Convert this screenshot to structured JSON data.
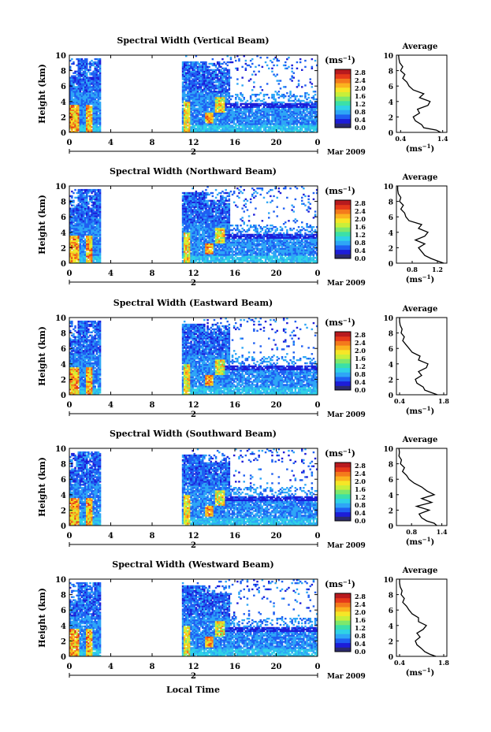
{
  "date_label": "Mar 2009",
  "xlabel": "Local Time",
  "units_label": "(ms",
  "units_exp": "−1",
  "avg_title": "Average",
  "colorbar": {
    "ticks": [
      "2.8",
      "2.4",
      "2.0",
      "1.6",
      "1.2",
      "0.8",
      "0.4",
      "0.0"
    ],
    "colors": [
      "#2b2a6e",
      "#1d1dd8",
      "#1f5ff2",
      "#2ea6f6",
      "#2fd2e6",
      "#3be0a8",
      "#7de86c",
      "#c8ef3a",
      "#f6e627",
      "#fbb31f",
      "#f47a1c",
      "#e6391a",
      "#b81a1e"
    ]
  },
  "chart_data": [
    {
      "type": "heatmap",
      "title": "Spectral Width (Vertical Beam)",
      "ylabel": "Height (km)",
      "x_ticks": [
        "0",
        "4",
        "8",
        "12",
        "16",
        "20",
        "0"
      ],
      "day_label": "2",
      "y_ticks": [
        "10",
        "8",
        "6",
        "4",
        "2",
        "0"
      ],
      "xlim": [
        0,
        24
      ],
      "ylim": [
        0,
        10
      ],
      "data_gap_hours": [
        3.0,
        10.8
      ],
      "units": "ms^-1",
      "average_profile": {
        "xlabel": "(ms^-1)",
        "x_ticks": [
          "0.4",
          "1.4"
        ],
        "xlim": [
          0.3,
          1.5
        ],
        "height_km": [
          0,
          0.3,
          0.6,
          1,
          1.5,
          2,
          2.5,
          3,
          3.5,
          4,
          4.5,
          5,
          5.5,
          6,
          6.5,
          7,
          7.5,
          8,
          8.5,
          9,
          9.5,
          10
        ],
        "width": [
          1.35,
          1.25,
          0.95,
          0.9,
          0.75,
          0.7,
          0.85,
          0.8,
          1.05,
          1.1,
          0.85,
          0.95,
          0.7,
          0.6,
          0.55,
          0.45,
          0.5,
          0.4,
          0.45,
          0.38,
          0.36,
          0.35
        ]
      }
    },
    {
      "type": "heatmap",
      "title": "Spectral Width (Northward Beam)",
      "ylabel": "Height (km)",
      "x_ticks": [
        "0",
        "4",
        "8",
        "12",
        "16",
        "20",
        "0"
      ],
      "day_label": "2",
      "y_ticks": [
        "10",
        "8",
        "6",
        "4",
        "2",
        "0"
      ],
      "xlim": [
        0,
        24
      ],
      "ylim": [
        0,
        10
      ],
      "data_gap_hours": [
        3.0,
        10.8
      ],
      "units": "ms^-1",
      "average_profile": {
        "xlabel": "(ms^-1)",
        "x_ticks": [
          "0.8",
          "1.2"
        ],
        "xlim": [
          0.55,
          1.35
        ],
        "height_km": [
          0,
          0.3,
          0.6,
          1,
          1.5,
          2,
          2.5,
          3,
          3.5,
          4,
          4.5,
          5,
          5.5,
          6,
          6.5,
          7,
          7.5,
          8,
          8.5,
          9,
          9.5,
          10
        ],
        "width": [
          1.3,
          1.2,
          1.1,
          1.0,
          0.95,
          0.9,
          1.0,
          0.85,
          1.0,
          1.05,
          0.9,
          0.95,
          0.75,
          0.7,
          0.68,
          0.62,
          0.66,
          0.6,
          0.62,
          0.58,
          0.57,
          0.57
        ]
      }
    },
    {
      "type": "heatmap",
      "title": "Spectral Width (Eastward Beam)",
      "ylabel": "Height (km)",
      "x_ticks": [
        "0",
        "4",
        "8",
        "12",
        "16",
        "20",
        "0"
      ],
      "day_label": "2",
      "y_ticks": [
        "10",
        "8",
        "6",
        "4",
        "2",
        "0"
      ],
      "xlim": [
        0,
        24
      ],
      "ylim": [
        0,
        10
      ],
      "data_gap_hours": [
        3.0,
        10.8
      ],
      "units": "ms^-1",
      "average_profile": {
        "xlabel": "(ms^-1)",
        "x_ticks": [
          "0.4",
          "1.8"
        ],
        "xlim": [
          0.3,
          1.9
        ],
        "height_km": [
          0,
          0.3,
          0.6,
          1,
          1.5,
          2,
          2.5,
          3,
          3.5,
          4,
          4.5,
          5,
          5.5,
          6,
          6.5,
          7,
          7.5,
          8,
          8.5,
          9,
          9.5,
          10
        ],
        "width": [
          1.6,
          1.4,
          1.2,
          1.15,
          0.95,
          0.9,
          1.1,
          1.0,
          1.25,
          1.3,
          1.0,
          1.05,
          0.8,
          0.7,
          0.6,
          0.5,
          0.55,
          0.45,
          0.48,
          0.42,
          0.4,
          0.4
        ]
      }
    },
    {
      "type": "heatmap",
      "title": "Spectral Width (Southward Beam)",
      "ylabel": "Height (km)",
      "x_ticks": [
        "0",
        "4",
        "8",
        "12",
        "16",
        "20",
        "0"
      ],
      "day_label": "2",
      "y_ticks": [
        "10",
        "8",
        "6",
        "4",
        "2",
        "0"
      ],
      "xlim": [
        0,
        24
      ],
      "ylim": [
        0,
        10
      ],
      "data_gap_hours": [
        3.0,
        10.8
      ],
      "units": "ms^-1",
      "average_profile": {
        "xlabel": "(ms^-1)",
        "x_ticks": [
          "0.8",
          "1.4"
        ],
        "xlim": [
          0.5,
          1.5
        ],
        "height_km": [
          0,
          0.3,
          0.6,
          1,
          1.5,
          2,
          2.5,
          3,
          3.5,
          4,
          4.5,
          5,
          5.5,
          6,
          6.5,
          7,
          7.5,
          8,
          8.5,
          9,
          9.5,
          10
        ],
        "width": [
          1.3,
          1.25,
          1.1,
          1.0,
          0.95,
          1.15,
          0.9,
          1.2,
          1.0,
          1.25,
          1.1,
          1.0,
          0.85,
          0.75,
          0.7,
          0.62,
          0.66,
          0.58,
          0.6,
          0.55,
          0.56,
          0.55
        ]
      }
    },
    {
      "type": "heatmap",
      "title": "Spectral Width (Westward Beam)",
      "ylabel": "Height (km)",
      "x_ticks": [
        "0",
        "4",
        "8",
        "12",
        "16",
        "20",
        "0"
      ],
      "day_label": "2",
      "y_ticks": [
        "10",
        "8",
        "6",
        "4",
        "2",
        "0"
      ],
      "xlim": [
        0,
        24
      ],
      "ylim": [
        0,
        10
      ],
      "data_gap_hours": [
        3.0,
        10.8
      ],
      "units": "ms^-1",
      "average_profile": {
        "xlabel": "(ms^-1)",
        "x_ticks": [
          "0.4",
          "1.8"
        ],
        "xlim": [
          0.3,
          1.9
        ],
        "height_km": [
          0,
          0.3,
          0.6,
          1,
          1.5,
          2,
          2.5,
          3,
          3.5,
          4,
          4.5,
          5,
          5.5,
          6,
          6.5,
          7,
          7.5,
          8,
          8.5,
          9,
          9.5,
          10
        ],
        "width": [
          1.55,
          1.35,
          1.2,
          1.1,
          0.95,
          0.9,
          1.05,
          0.95,
          1.15,
          1.25,
          1.0,
          1.0,
          0.8,
          0.7,
          0.62,
          0.5,
          0.55,
          0.45,
          0.48,
          0.42,
          0.4,
          0.4
        ]
      }
    }
  ]
}
